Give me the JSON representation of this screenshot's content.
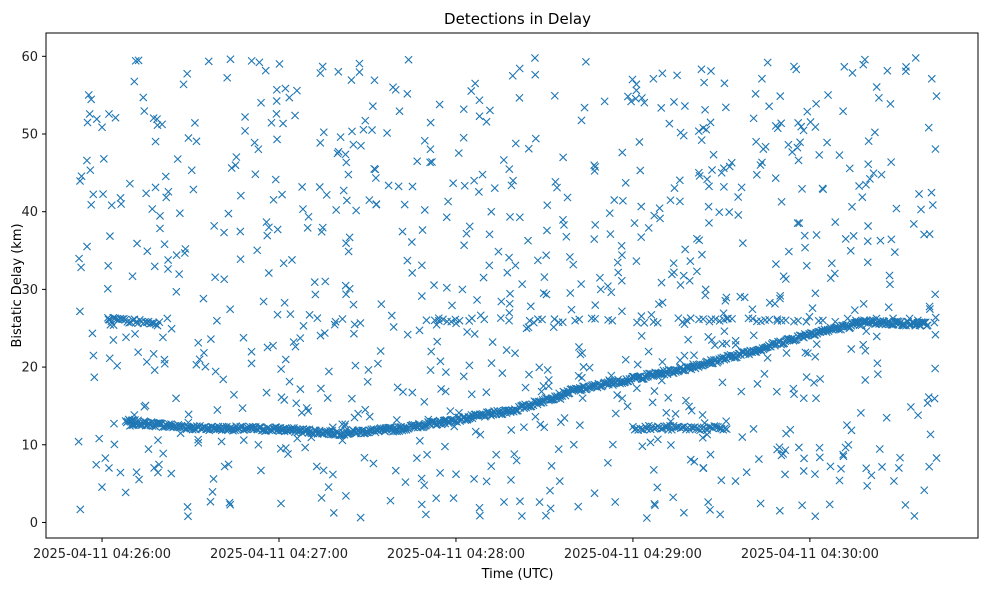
{
  "chart_data": {
    "type": "scatter",
    "title": "Detections in Delay",
    "xlabel": "Time (UTC)",
    "ylabel": "Bistatic Delay (km)",
    "marker": "x",
    "color": "#1f77b4",
    "grid": false,
    "legend": "none",
    "xlim": [
      "2025-04-11 04:25:41",
      "2025-04-11 04:30:57"
    ],
    "ylim": [
      -2,
      63
    ],
    "x_ticks": [
      "2025-04-11 04:26:00",
      "2025-04-11 04:27:00",
      "2025-04-11 04:28:00",
      "2025-04-11 04:29:00",
      "2025-04-11 04:30:00"
    ],
    "y_ticks": [
      "0",
      "10",
      "20",
      "30",
      "40",
      "50",
      "60"
    ],
    "data_span": {
      "start": "2025-04-11 04:25:52",
      "end": "2025-04-11 04:30:43"
    },
    "tracks": [
      {
        "description": "main moving target",
        "points": [
          [
            "2025-04-11 04:26:08",
            13
          ],
          [
            "2025-04-11 04:26:30",
            12.2
          ],
          [
            "2025-04-11 04:27:00",
            12
          ],
          [
            "2025-04-11 04:27:20",
            11.5
          ],
          [
            "2025-04-11 04:27:40",
            12
          ],
          [
            "2025-04-11 04:28:00",
            13.2
          ],
          [
            "2025-04-11 04:28:20",
            14.5
          ],
          [
            "2025-04-11 04:28:40",
            17
          ],
          [
            "2025-04-11 04:29:00",
            18.5
          ],
          [
            "2025-04-11 04:29:20",
            20
          ],
          [
            "2025-04-11 04:29:40",
            22
          ],
          [
            "2025-04-11 04:30:00",
            24.3
          ],
          [
            "2025-04-11 04:30:20",
            25.8
          ],
          [
            "2025-04-11 04:30:40",
            25.5
          ]
        ]
      },
      {
        "description": "short segment near 26 km",
        "points": [
          [
            "2025-04-11 04:26:02",
            26.2
          ],
          [
            "2025-04-11 04:26:20",
            25.6
          ]
        ]
      },
      {
        "description": "short segment near 12 km",
        "points": [
          [
            "2025-04-11 04:29:00",
            12.2
          ],
          [
            "2025-04-11 04:29:32",
            12.1
          ]
        ]
      },
      {
        "description": "intermittent line near 26 km",
        "points": [
          [
            "2025-04-11 04:27:50",
            26
          ],
          [
            "2025-04-11 04:30:43",
            26
          ]
        ]
      }
    ],
    "clutter": {
      "description": "scattered false detections across full delay range",
      "delay_range": [
        0.5,
        59.8
      ]
    }
  }
}
